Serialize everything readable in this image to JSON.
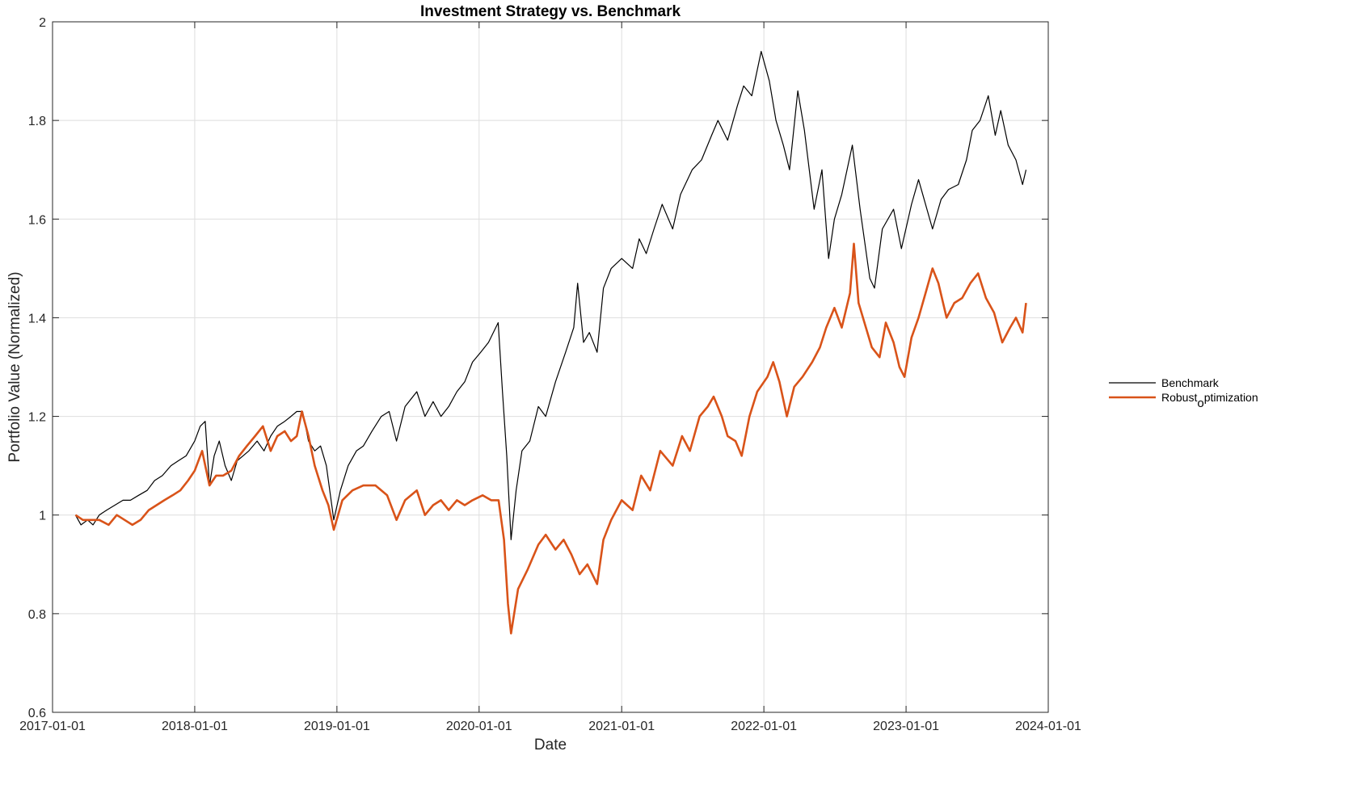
{
  "chart_data": {
    "type": "line",
    "title": "Investment Strategy vs. Benchmark",
    "xlabel": "Date",
    "ylabel": "Portfolio Value (Normalized)",
    "xlim": [
      "2017-01-01",
      "2024-01-01"
    ],
    "ylim": [
      0.6,
      2.0
    ],
    "x_ticks": [
      "2017-01-01",
      "2018-01-01",
      "2019-01-01",
      "2020-01-01",
      "2021-01-01",
      "2022-01-01",
      "2023-01-01",
      "2024-01-01"
    ],
    "y_ticks": [
      0.6,
      0.8,
      1,
      1.2,
      1.4,
      1.6,
      1.8,
      2
    ],
    "grid": true,
    "legend_position": "outside-right",
    "series": [
      {
        "name": "Benchmark",
        "color": "#000000",
        "points": [
          [
            "2017-03-01",
            1.0
          ],
          [
            "2017-03-15",
            0.98
          ],
          [
            "2017-04-01",
            0.99
          ],
          [
            "2017-04-15",
            0.98
          ],
          [
            "2017-05-01",
            1.0
          ],
          [
            "2017-05-20",
            1.01
          ],
          [
            "2017-06-10",
            1.02
          ],
          [
            "2017-07-01",
            1.03
          ],
          [
            "2017-07-20",
            1.03
          ],
          [
            "2017-08-10",
            1.04
          ],
          [
            "2017-09-01",
            1.05
          ],
          [
            "2017-09-20",
            1.07
          ],
          [
            "2017-10-10",
            1.08
          ],
          [
            "2017-11-01",
            1.1
          ],
          [
            "2017-11-20",
            1.11
          ],
          [
            "2017-12-10",
            1.12
          ],
          [
            "2018-01-01",
            1.15
          ],
          [
            "2018-01-15",
            1.18
          ],
          [
            "2018-01-28",
            1.19
          ],
          [
            "2018-02-08",
            1.06
          ],
          [
            "2018-02-20",
            1.12
          ],
          [
            "2018-03-05",
            1.15
          ],
          [
            "2018-03-20",
            1.1
          ],
          [
            "2018-04-05",
            1.07
          ],
          [
            "2018-04-20",
            1.11
          ],
          [
            "2018-05-05",
            1.12
          ],
          [
            "2018-05-20",
            1.13
          ],
          [
            "2018-06-10",
            1.15
          ],
          [
            "2018-06-28",
            1.13
          ],
          [
            "2018-07-15",
            1.16
          ],
          [
            "2018-08-01",
            1.18
          ],
          [
            "2018-08-20",
            1.19
          ],
          [
            "2018-09-05",
            1.2
          ],
          [
            "2018-09-20",
            1.21
          ],
          [
            "2018-10-05",
            1.21
          ],
          [
            "2018-10-20",
            1.15
          ],
          [
            "2018-11-05",
            1.13
          ],
          [
            "2018-11-20",
            1.14
          ],
          [
            "2018-12-05",
            1.1
          ],
          [
            "2018-12-24",
            0.99
          ],
          [
            "2019-01-10",
            1.05
          ],
          [
            "2019-01-30",
            1.1
          ],
          [
            "2019-02-20",
            1.13
          ],
          [
            "2019-03-10",
            1.14
          ],
          [
            "2019-04-01",
            1.17
          ],
          [
            "2019-04-25",
            1.2
          ],
          [
            "2019-05-15",
            1.21
          ],
          [
            "2019-06-03",
            1.15
          ],
          [
            "2019-06-25",
            1.22
          ],
          [
            "2019-07-25",
            1.25
          ],
          [
            "2019-08-15",
            1.2
          ],
          [
            "2019-09-05",
            1.23
          ],
          [
            "2019-09-25",
            1.2
          ],
          [
            "2019-10-15",
            1.22
          ],
          [
            "2019-11-05",
            1.25
          ],
          [
            "2019-11-25",
            1.27
          ],
          [
            "2019-12-15",
            1.31
          ],
          [
            "2020-01-05",
            1.33
          ],
          [
            "2020-01-25",
            1.35
          ],
          [
            "2020-02-19",
            1.39
          ],
          [
            "2020-03-01",
            1.25
          ],
          [
            "2020-03-12",
            1.12
          ],
          [
            "2020-03-23",
            0.95
          ],
          [
            "2020-04-05",
            1.05
          ],
          [
            "2020-04-20",
            1.13
          ],
          [
            "2020-05-10",
            1.15
          ],
          [
            "2020-06-01",
            1.22
          ],
          [
            "2020-06-20",
            1.2
          ],
          [
            "2020-07-15",
            1.27
          ],
          [
            "2020-08-10",
            1.33
          ],
          [
            "2020-08-31",
            1.38
          ],
          [
            "2020-09-10",
            1.47
          ],
          [
            "2020-09-25",
            1.35
          ],
          [
            "2020-10-10",
            1.37
          ],
          [
            "2020-10-30",
            1.33
          ],
          [
            "2020-11-15",
            1.46
          ],
          [
            "2020-12-05",
            1.5
          ],
          [
            "2021-01-01",
            1.52
          ],
          [
            "2021-01-29",
            1.5
          ],
          [
            "2021-02-15",
            1.56
          ],
          [
            "2021-03-05",
            1.53
          ],
          [
            "2021-03-25",
            1.58
          ],
          [
            "2021-04-15",
            1.63
          ],
          [
            "2021-05-12",
            1.58
          ],
          [
            "2021-06-01",
            1.65
          ],
          [
            "2021-07-01",
            1.7
          ],
          [
            "2021-07-25",
            1.72
          ],
          [
            "2021-08-20",
            1.77
          ],
          [
            "2021-09-05",
            1.8
          ],
          [
            "2021-09-30",
            1.76
          ],
          [
            "2021-10-25",
            1.83
          ],
          [
            "2021-11-10",
            1.87
          ],
          [
            "2021-12-01",
            1.85
          ],
          [
            "2021-12-25",
            1.94
          ],
          [
            "2022-01-15",
            1.88
          ],
          [
            "2022-02-01",
            1.8
          ],
          [
            "2022-02-20",
            1.75
          ],
          [
            "2022-03-08",
            1.7
          ],
          [
            "2022-03-29",
            1.86
          ],
          [
            "2022-04-15",
            1.78
          ],
          [
            "2022-05-10",
            1.62
          ],
          [
            "2022-05-30",
            1.7
          ],
          [
            "2022-06-16",
            1.52
          ],
          [
            "2022-07-01",
            1.6
          ],
          [
            "2022-07-20",
            1.65
          ],
          [
            "2022-08-16",
            1.75
          ],
          [
            "2022-09-05",
            1.62
          ],
          [
            "2022-09-30",
            1.48
          ],
          [
            "2022-10-12",
            1.46
          ],
          [
            "2022-11-01",
            1.58
          ],
          [
            "2022-11-30",
            1.62
          ],
          [
            "2022-12-20",
            1.54
          ],
          [
            "2023-01-15",
            1.63
          ],
          [
            "2023-02-02",
            1.68
          ],
          [
            "2023-03-10",
            1.58
          ],
          [
            "2023-04-01",
            1.64
          ],
          [
            "2023-04-20",
            1.66
          ],
          [
            "2023-05-15",
            1.67
          ],
          [
            "2023-06-05",
            1.72
          ],
          [
            "2023-06-20",
            1.78
          ],
          [
            "2023-07-10",
            1.8
          ],
          [
            "2023-07-31",
            1.85
          ],
          [
            "2023-08-18",
            1.77
          ],
          [
            "2023-09-01",
            1.82
          ],
          [
            "2023-09-20",
            1.75
          ],
          [
            "2023-10-10",
            1.72
          ],
          [
            "2023-10-27",
            1.67
          ],
          [
            "2023-11-05",
            1.7
          ]
        ]
      },
      {
        "name": "Robust_optimization",
        "color": "#D95319",
        "points": [
          [
            "2017-03-01",
            1.0
          ],
          [
            "2017-03-20",
            0.99
          ],
          [
            "2017-04-10",
            0.99
          ],
          [
            "2017-05-01",
            0.99
          ],
          [
            "2017-05-25",
            0.98
          ],
          [
            "2017-06-15",
            1.0
          ],
          [
            "2017-07-05",
            0.99
          ],
          [
            "2017-07-25",
            0.98
          ],
          [
            "2017-08-15",
            0.99
          ],
          [
            "2017-09-05",
            1.01
          ],
          [
            "2017-09-25",
            1.02
          ],
          [
            "2017-10-15",
            1.03
          ],
          [
            "2017-11-05",
            1.04
          ],
          [
            "2017-11-25",
            1.05
          ],
          [
            "2017-12-15",
            1.07
          ],
          [
            "2018-01-01",
            1.09
          ],
          [
            "2018-01-20",
            1.13
          ],
          [
            "2018-02-08",
            1.06
          ],
          [
            "2018-02-25",
            1.08
          ],
          [
            "2018-03-15",
            1.08
          ],
          [
            "2018-04-05",
            1.09
          ],
          [
            "2018-04-25",
            1.12
          ],
          [
            "2018-05-15",
            1.14
          ],
          [
            "2018-06-05",
            1.16
          ],
          [
            "2018-06-25",
            1.18
          ],
          [
            "2018-07-15",
            1.13
          ],
          [
            "2018-08-01",
            1.16
          ],
          [
            "2018-08-20",
            1.17
          ],
          [
            "2018-09-05",
            1.15
          ],
          [
            "2018-09-20",
            1.16
          ],
          [
            "2018-10-03",
            1.21
          ],
          [
            "2018-10-20",
            1.16
          ],
          [
            "2018-11-05",
            1.1
          ],
          [
            "2018-11-25",
            1.05
          ],
          [
            "2018-12-10",
            1.02
          ],
          [
            "2018-12-24",
            0.97
          ],
          [
            "2019-01-15",
            1.03
          ],
          [
            "2019-02-10",
            1.05
          ],
          [
            "2019-03-10",
            1.06
          ],
          [
            "2019-04-10",
            1.06
          ],
          [
            "2019-05-10",
            1.04
          ],
          [
            "2019-06-03",
            0.99
          ],
          [
            "2019-06-25",
            1.03
          ],
          [
            "2019-07-25",
            1.05
          ],
          [
            "2019-08-15",
            1.0
          ],
          [
            "2019-09-05",
            1.02
          ],
          [
            "2019-09-25",
            1.03
          ],
          [
            "2019-10-15",
            1.01
          ],
          [
            "2019-11-05",
            1.03
          ],
          [
            "2019-11-25",
            1.02
          ],
          [
            "2019-12-15",
            1.03
          ],
          [
            "2020-01-10",
            1.04
          ],
          [
            "2020-02-01",
            1.03
          ],
          [
            "2020-02-20",
            1.03
          ],
          [
            "2020-03-05",
            0.95
          ],
          [
            "2020-03-15",
            0.82
          ],
          [
            "2020-03-23",
            0.76
          ],
          [
            "2020-04-10",
            0.85
          ],
          [
            "2020-05-05",
            0.89
          ],
          [
            "2020-06-01",
            0.94
          ],
          [
            "2020-06-20",
            0.96
          ],
          [
            "2020-07-15",
            0.93
          ],
          [
            "2020-08-05",
            0.95
          ],
          [
            "2020-08-25",
            0.92
          ],
          [
            "2020-09-15",
            0.88
          ],
          [
            "2020-10-05",
            0.9
          ],
          [
            "2020-10-30",
            0.86
          ],
          [
            "2020-11-15",
            0.95
          ],
          [
            "2020-12-05",
            0.99
          ],
          [
            "2021-01-01",
            1.03
          ],
          [
            "2021-01-29",
            1.01
          ],
          [
            "2021-02-20",
            1.08
          ],
          [
            "2021-03-15",
            1.05
          ],
          [
            "2021-04-10",
            1.13
          ],
          [
            "2021-05-12",
            1.1
          ],
          [
            "2021-06-05",
            1.16
          ],
          [
            "2021-06-25",
            1.13
          ],
          [
            "2021-07-20",
            1.2
          ],
          [
            "2021-08-10",
            1.22
          ],
          [
            "2021-08-25",
            1.24
          ],
          [
            "2021-09-15",
            1.2
          ],
          [
            "2021-09-30",
            1.16
          ],
          [
            "2021-10-20",
            1.15
          ],
          [
            "2021-11-05",
            1.12
          ],
          [
            "2021-11-25",
            1.2
          ],
          [
            "2021-12-15",
            1.25
          ],
          [
            "2022-01-10",
            1.28
          ],
          [
            "2022-01-25",
            1.31
          ],
          [
            "2022-02-10",
            1.27
          ],
          [
            "2022-03-01",
            1.2
          ],
          [
            "2022-03-20",
            1.26
          ],
          [
            "2022-04-10",
            1.28
          ],
          [
            "2022-05-05",
            1.31
          ],
          [
            "2022-05-25",
            1.34
          ],
          [
            "2022-06-10",
            1.38
          ],
          [
            "2022-07-01",
            1.42
          ],
          [
            "2022-07-20",
            1.38
          ],
          [
            "2022-08-10",
            1.45
          ],
          [
            "2022-08-20",
            1.55
          ],
          [
            "2022-09-01",
            1.43
          ],
          [
            "2022-09-20",
            1.38
          ],
          [
            "2022-10-05",
            1.34
          ],
          [
            "2022-10-25",
            1.32
          ],
          [
            "2022-11-10",
            1.39
          ],
          [
            "2022-11-30",
            1.35
          ],
          [
            "2022-12-15",
            1.3
          ],
          [
            "2022-12-28",
            1.28
          ],
          [
            "2023-01-15",
            1.36
          ],
          [
            "2023-02-02",
            1.4
          ],
          [
            "2023-02-20",
            1.45
          ],
          [
            "2023-03-10",
            1.5
          ],
          [
            "2023-03-25",
            1.47
          ],
          [
            "2023-04-15",
            1.4
          ],
          [
            "2023-05-05",
            1.43
          ],
          [
            "2023-05-25",
            1.44
          ],
          [
            "2023-06-15",
            1.47
          ],
          [
            "2023-07-05",
            1.49
          ],
          [
            "2023-07-25",
            1.44
          ],
          [
            "2023-08-15",
            1.41
          ],
          [
            "2023-09-05",
            1.35
          ],
          [
            "2023-09-25",
            1.38
          ],
          [
            "2023-10-10",
            1.4
          ],
          [
            "2023-10-27",
            1.37
          ],
          [
            "2023-11-05",
            1.43
          ]
        ]
      }
    ]
  }
}
